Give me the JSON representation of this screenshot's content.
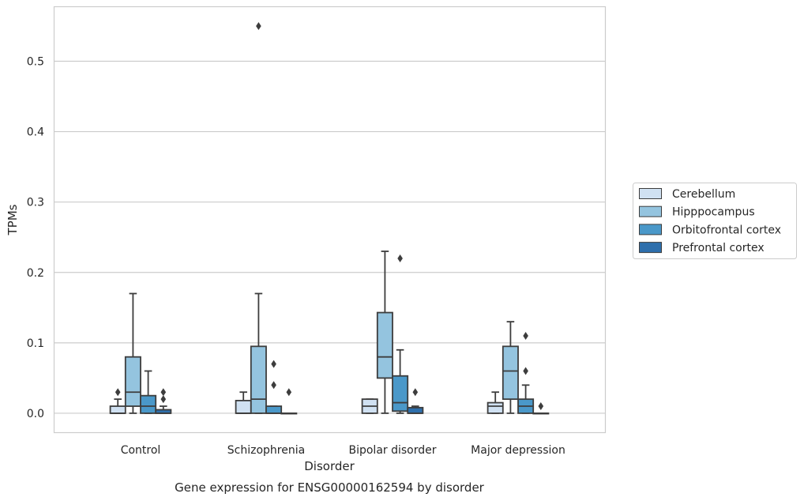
{
  "chart_data": {
    "type": "box",
    "xlabel": "Disorder",
    "ylabel": "TPMs",
    "caption": "Gene expression for ENSG00000162594 by disorder",
    "categories": [
      "Control",
      "Schizophrenia",
      "Bipolar disorder",
      "Major depression"
    ],
    "yticks": [
      0.0,
      0.1,
      0.2,
      0.3,
      0.4,
      0.5
    ],
    "ytick_labels": [
      "0.0",
      "0.1",
      "0.2",
      "0.3",
      "0.4",
      "0.5"
    ],
    "ylim": [
      -0.027,
      0.578
    ],
    "grid": true,
    "legend_position": "right",
    "series": [
      {
        "name": "Cerebellum",
        "color": "#d0e1f2",
        "boxes": [
          {
            "whisker_low": 0.0,
            "q1": 0.0,
            "median": 0.0,
            "q3": 0.01,
            "whisker_high": 0.02,
            "outliers": [
              0.03
            ]
          },
          {
            "whisker_low": 0.0,
            "q1": 0.0,
            "median": 0.0,
            "q3": 0.018,
            "whisker_high": 0.03,
            "outliers": []
          },
          {
            "whisker_low": 0.0,
            "q1": 0.0,
            "median": 0.01,
            "q3": 0.02,
            "whisker_high": 0.02,
            "outliers": []
          },
          {
            "whisker_low": 0.0,
            "q1": 0.0,
            "median": 0.01,
            "q3": 0.015,
            "whisker_high": 0.03,
            "outliers": []
          }
        ]
      },
      {
        "name": "Hipppocampus",
        "color": "#94c4df",
        "boxes": [
          {
            "whisker_low": 0.0,
            "q1": 0.01,
            "median": 0.03,
            "q3": 0.08,
            "whisker_high": 0.17,
            "outliers": []
          },
          {
            "whisker_low": 0.0,
            "q1": 0.0,
            "median": 0.02,
            "q3": 0.095,
            "whisker_high": 0.17,
            "outliers": [
              0.55
            ]
          },
          {
            "whisker_low": 0.0,
            "q1": 0.05,
            "median": 0.08,
            "q3": 0.143,
            "whisker_high": 0.23,
            "outliers": []
          },
          {
            "whisker_low": 0.0,
            "q1": 0.02,
            "median": 0.06,
            "q3": 0.095,
            "whisker_high": 0.13,
            "outliers": []
          }
        ]
      },
      {
        "name": "Orbitofrontal cortex",
        "color": "#4a98c9",
        "boxes": [
          {
            "whisker_low": 0.0,
            "q1": 0.0,
            "median": 0.01,
            "q3": 0.025,
            "whisker_high": 0.06,
            "outliers": []
          },
          {
            "whisker_low": 0.0,
            "q1": 0.0,
            "median": 0.0,
            "q3": 0.01,
            "whisker_high": 0.01,
            "outliers": [
              0.04,
              0.07
            ]
          },
          {
            "whisker_low": 0.0,
            "q1": 0.003,
            "median": 0.015,
            "q3": 0.053,
            "whisker_high": 0.09,
            "outliers": [
              0.22
            ]
          },
          {
            "whisker_low": 0.0,
            "q1": 0.0,
            "median": 0.01,
            "q3": 0.02,
            "whisker_high": 0.04,
            "outliers": [
              0.06,
              0.11
            ]
          }
        ]
      },
      {
        "name": "Prefrontal cortex",
        "color": "#2e6fac",
        "boxes": [
          {
            "whisker_low": 0.0,
            "q1": 0.0,
            "median": 0.0,
            "q3": 0.005,
            "whisker_high": 0.01,
            "outliers": [
              0.02,
              0.03
            ]
          },
          {
            "whisker_low": 0.0,
            "q1": 0.0,
            "median": 0.0,
            "q3": 0.0,
            "whisker_high": 0.0,
            "outliers": [
              0.03
            ]
          },
          {
            "whisker_low": 0.0,
            "q1": 0.0,
            "median": 0.0,
            "q3": 0.008,
            "whisker_high": 0.01,
            "outliers": [
              0.03
            ]
          },
          {
            "whisker_low": 0.0,
            "q1": 0.0,
            "median": 0.0,
            "q3": 0.0,
            "whisker_high": 0.0,
            "outliers": [
              0.01
            ]
          }
        ]
      }
    ]
  }
}
